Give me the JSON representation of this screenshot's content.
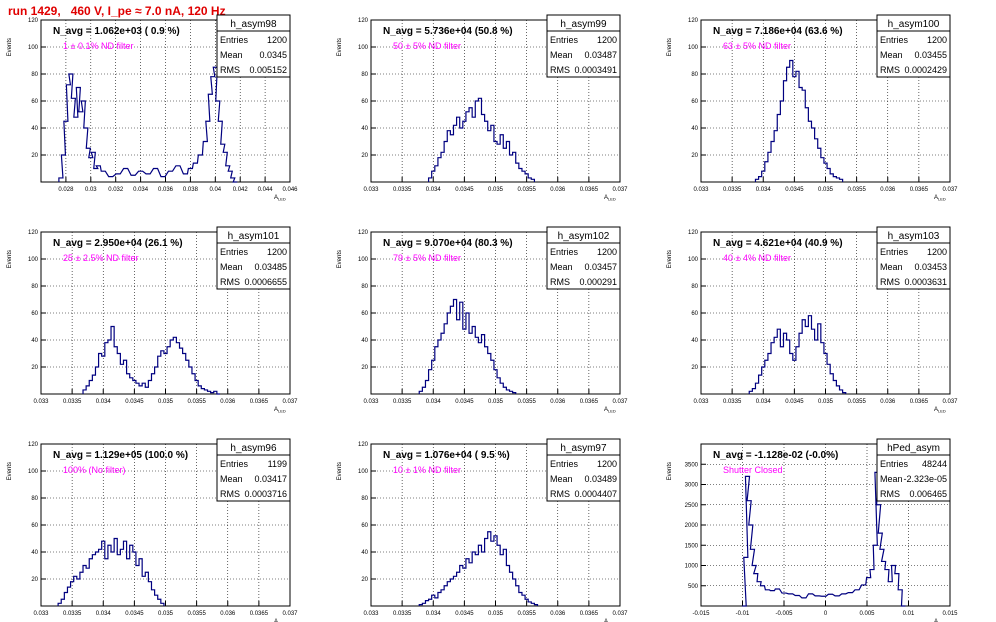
{
  "page_title": "run 1429,   460 V, I_pe ≈ 7.0 nA, 120 Hz",
  "colors": {
    "title": "#e00000",
    "histogram": "#000080",
    "annotation": "#ff00ff",
    "grid": "#000000"
  },
  "stats_labels": {
    "entries": "Entries",
    "mean": "Mean",
    "rms": "RMS"
  },
  "chart_data": [
    {
      "type": "histogram",
      "name": "h_asym98",
      "title": "N_avg = 1.062e+03 ( 0.9 %)",
      "annotation": "1 ± 0.1% ND filter",
      "stats": {
        "entries": "1200",
        "mean": "0.0345",
        "rms": "0.005152"
      },
      "xlabel": "A_LED",
      "ylabel": "Events",
      "grid": true,
      "xlim": [
        0.026,
        0.046
      ],
      "ylim": [
        0,
        120
      ],
      "xticks": [
        "0.028",
        "0.03",
        "0.032",
        "0.034",
        "0.036",
        "0.038",
        "0.04",
        "0.042",
        "0.044",
        "0.046"
      ],
      "xtick_values": [
        0.028,
        0.03,
        0.032,
        0.034,
        0.036,
        0.038,
        0.04,
        0.042,
        0.044,
        0.046
      ],
      "yticks": [
        "20",
        "40",
        "60",
        "80",
        "100",
        "120"
      ],
      "ytick_values": [
        20,
        40,
        60,
        80,
        100,
        120
      ],
      "x": [
        0.0276,
        0.0278,
        0.028,
        0.0282,
        0.0284,
        0.0286,
        0.0288,
        0.029,
        0.0292,
        0.0294,
        0.0296,
        0.0298,
        0.03,
        0.0302,
        0.0304,
        0.0306,
        0.031,
        0.0316,
        0.0322,
        0.0328,
        0.0334,
        0.034,
        0.0346,
        0.0352,
        0.0358,
        0.0364,
        0.037,
        0.0376,
        0.038,
        0.0384,
        0.0388,
        0.0392,
        0.0394,
        0.0396,
        0.0398,
        0.04,
        0.0402,
        0.0404,
        0.0406,
        0.0408,
        0.041,
        0.0412,
        0.0414,
        0.0416
      ],
      "values": [
        3,
        20,
        45,
        72,
        80,
        62,
        48,
        70,
        52,
        60,
        40,
        25,
        18,
        22,
        10,
        12,
        8,
        4,
        6,
        10,
        5,
        8,
        6,
        10,
        4,
        8,
        12,
        6,
        10,
        14,
        20,
        30,
        45,
        65,
        78,
        85,
        60,
        45,
        28,
        22,
        12,
        8,
        3,
        0
      ]
    },
    {
      "type": "histogram",
      "name": "h_asym99",
      "title": "N_avg = 5.736e+04 (50.8 %)",
      "annotation": "50 ± 5% ND filter",
      "stats": {
        "entries": "1200",
        "mean": "0.03487",
        "rms": "0.0003491"
      },
      "xlabel": "A_LED",
      "ylabel": "Events",
      "grid": true,
      "xlim": [
        0.033,
        0.037
      ],
      "ylim": [
        0,
        120
      ],
      "xticks": [
        "0.033",
        "0.0335",
        "0.034",
        "0.0345",
        "0.035",
        "0.0355",
        "0.036",
        "0.0365",
        "0.037"
      ],
      "xtick_values": [
        0.033,
        0.0335,
        0.034,
        0.0345,
        0.035,
        0.0355,
        0.036,
        0.0365,
        0.037
      ],
      "yticks": [
        "20",
        "40",
        "60",
        "80",
        "100",
        "120"
      ],
      "ytick_values": [
        20,
        40,
        60,
        80,
        100,
        120
      ],
      "x": [
        0.03395,
        0.034,
        0.03405,
        0.0341,
        0.03415,
        0.0342,
        0.03425,
        0.0343,
        0.03435,
        0.0344,
        0.03445,
        0.0345,
        0.03455,
        0.0346,
        0.03465,
        0.0347,
        0.03475,
        0.0348,
        0.03485,
        0.0349,
        0.03495,
        0.035,
        0.03505,
        0.0351,
        0.03515,
        0.0352,
        0.03525,
        0.0353,
        0.03535,
        0.0354,
        0.03545,
        0.0355,
        0.03555,
        0.0356
      ],
      "values": [
        3,
        8,
        12,
        18,
        22,
        30,
        38,
        35,
        42,
        48,
        40,
        45,
        52,
        55,
        48,
        60,
        62,
        50,
        45,
        38,
        42,
        30,
        28,
        35,
        25,
        30,
        20,
        22,
        14,
        10,
        8,
        6,
        3,
        2
      ]
    },
    {
      "type": "histogram",
      "name": "h_asym100",
      "title": "N_avg = 7.186e+04 (63.6 %)",
      "annotation": "63 ± 5% ND filter",
      "stats": {
        "entries": "1200",
        "mean": "0.03455",
        "rms": "0.0002429"
      },
      "xlabel": "A_LED",
      "ylabel": "Events",
      "grid": true,
      "xlim": [
        0.033,
        0.037
      ],
      "ylim": [
        0,
        120
      ],
      "xticks": [
        "0.033",
        "0.0335",
        "0.034",
        "0.0345",
        "0.035",
        "0.0355",
        "0.036",
        "0.0365",
        "0.037"
      ],
      "xtick_values": [
        0.033,
        0.0335,
        0.034,
        0.0345,
        0.035,
        0.0355,
        0.036,
        0.0365,
        0.037
      ],
      "yticks": [
        "20",
        "40",
        "60",
        "80",
        "100",
        "120"
      ],
      "ytick_values": [
        20,
        40,
        60,
        80,
        100,
        120
      ],
      "x": [
        0.0339,
        0.03395,
        0.034,
        0.03405,
        0.0341,
        0.03415,
        0.0342,
        0.03425,
        0.0343,
        0.03435,
        0.0344,
        0.03445,
        0.0345,
        0.03455,
        0.0346,
        0.03465,
        0.0347,
        0.03475,
        0.0348,
        0.03485,
        0.0349,
        0.03495,
        0.035,
        0.03505,
        0.0351,
        0.03515,
        0.0352,
        0.03525
      ],
      "values": [
        2,
        4,
        8,
        15,
        22,
        30,
        38,
        50,
        60,
        75,
        85,
        90,
        78,
        82,
        70,
        68,
        55,
        45,
        40,
        32,
        25,
        18,
        14,
        10,
        6,
        4,
        3,
        2
      ]
    },
    {
      "type": "histogram",
      "name": "h_asym101",
      "title": "N_avg = 2.950e+04 (26.1 %)",
      "annotation": "25 ± 2.5% ND filter",
      "stats": {
        "entries": "1200",
        "mean": "0.03485",
        "rms": "0.0006655"
      },
      "xlabel": "A_LED",
      "ylabel": "Events",
      "grid": true,
      "xlim": [
        0.033,
        0.037
      ],
      "ylim": [
        0,
        120
      ],
      "xticks": [
        "0.033",
        "0.0335",
        "0.034",
        "0.0345",
        "0.035",
        "0.0355",
        "0.036",
        "0.0365",
        "0.037"
      ],
      "xtick_values": [
        0.033,
        0.0335,
        0.034,
        0.0345,
        0.035,
        0.0355,
        0.036,
        0.0365,
        0.037
      ],
      "yticks": [
        "20",
        "40",
        "60",
        "80",
        "100",
        "120"
      ],
      "ytick_values": [
        20,
        40,
        60,
        80,
        100,
        120
      ],
      "x": [
        0.0337,
        0.03375,
        0.0338,
        0.03385,
        0.0339,
        0.03395,
        0.034,
        0.03405,
        0.0341,
        0.03415,
        0.0342,
        0.03425,
        0.0343,
        0.03435,
        0.0344,
        0.03445,
        0.0345,
        0.03455,
        0.0346,
        0.03465,
        0.0347,
        0.03475,
        0.0348,
        0.03485,
        0.0349,
        0.03495,
        0.035,
        0.03505,
        0.0351,
        0.03515,
        0.0352,
        0.03525,
        0.0353,
        0.03535,
        0.0354,
        0.03545,
        0.0355,
        0.03555,
        0.0356,
        0.03565,
        0.0357,
        0.03575,
        0.0358,
        0.03585
      ],
      "values": [
        3,
        6,
        10,
        14,
        20,
        30,
        28,
        38,
        40,
        50,
        35,
        30,
        22,
        25,
        15,
        12,
        10,
        8,
        6,
        8,
        5,
        10,
        15,
        20,
        28,
        32,
        30,
        35,
        40,
        42,
        38,
        34,
        30,
        25,
        20,
        15,
        10,
        6,
        4,
        3,
        2,
        1,
        2,
        0
      ]
    },
    {
      "type": "histogram",
      "name": "h_asym102",
      "title": "N_avg = 9.070e+04 (80.3 %)",
      "annotation": "79 ± 5% ND filter",
      "stats": {
        "entries": "1200",
        "mean": "0.03457",
        "rms": "0.000291"
      },
      "xlabel": "A_LED",
      "ylabel": "Events",
      "grid": true,
      "xlim": [
        0.033,
        0.037
      ],
      "ylim": [
        0,
        120
      ],
      "xticks": [
        "0.033",
        "0.0335",
        "0.034",
        "0.0345",
        "0.035",
        "0.0355",
        "0.036",
        "0.0365",
        "0.037"
      ],
      "xtick_values": [
        0.033,
        0.0335,
        0.034,
        0.0345,
        0.035,
        0.0355,
        0.036,
        0.0365,
        0.037
      ],
      "yticks": [
        "20",
        "40",
        "60",
        "80",
        "100",
        "120"
      ],
      "ytick_values": [
        20,
        40,
        60,
        80,
        100,
        120
      ],
      "x": [
        0.0338,
        0.03385,
        0.0339,
        0.03395,
        0.034,
        0.03405,
        0.0341,
        0.03415,
        0.0342,
        0.03425,
        0.0343,
        0.03435,
        0.0344,
        0.03445,
        0.0345,
        0.03455,
        0.0346,
        0.03465,
        0.0347,
        0.03475,
        0.0348,
        0.03485,
        0.0349,
        0.03495,
        0.035,
        0.03505,
        0.0351,
        0.03515,
        0.0352,
        0.03525,
        0.0353
      ],
      "values": [
        2,
        5,
        10,
        18,
        25,
        35,
        40,
        45,
        52,
        60,
        65,
        70,
        55,
        68,
        48,
        60,
        45,
        50,
        42,
        38,
        44,
        35,
        30,
        25,
        18,
        12,
        8,
        5,
        3,
        2,
        1
      ]
    },
    {
      "type": "histogram",
      "name": "h_asym103",
      "title": "N_avg = 4.621e+04 (40.9 %)",
      "annotation": "40 ± 4% ND filter",
      "stats": {
        "entries": "1200",
        "mean": "0.03453",
        "rms": "0.0003631"
      },
      "xlabel": "A_LED",
      "ylabel": "Events",
      "grid": true,
      "xlim": [
        0.033,
        0.037
      ],
      "ylim": [
        0,
        120
      ],
      "xticks": [
        "0.033",
        "0.0335",
        "0.034",
        "0.0345",
        "0.035",
        "0.0355",
        "0.036",
        "0.0365",
        "0.037"
      ],
      "xtick_values": [
        0.033,
        0.0335,
        0.034,
        0.0345,
        0.035,
        0.0355,
        0.036,
        0.0365,
        0.037
      ],
      "yticks": [
        "20",
        "40",
        "60",
        "80",
        "100",
        "120"
      ],
      "ytick_values": [
        20,
        40,
        60,
        80,
        100,
        120
      ],
      "x": [
        0.0338,
        0.03385,
        0.0339,
        0.03395,
        0.034,
        0.03405,
        0.0341,
        0.03415,
        0.0342,
        0.03425,
        0.0343,
        0.03435,
        0.0344,
        0.03445,
        0.0345,
        0.03455,
        0.0346,
        0.03465,
        0.0347,
        0.03475,
        0.0348,
        0.03485,
        0.0349,
        0.03495,
        0.035,
        0.03505,
        0.0351,
        0.03515,
        0.0352,
        0.03525,
        0.0353
      ],
      "values": [
        2,
        4,
        8,
        14,
        20,
        25,
        30,
        38,
        42,
        48,
        35,
        45,
        40,
        30,
        25,
        35,
        45,
        55,
        50,
        58,
        48,
        40,
        52,
        38,
        30,
        22,
        15,
        10,
        6,
        3,
        1
      ]
    },
    {
      "type": "histogram",
      "name": "h_asym96",
      "title": "N_avg = 1.129e+05 (100.0 %)",
      "annotation": "100% (No filter)",
      "stats": {
        "entries": "1199",
        "mean": "0.03417",
        "rms": "0.0003716"
      },
      "xlabel": "A_LED",
      "ylabel": "Events",
      "grid": true,
      "xlim": [
        0.033,
        0.037
      ],
      "ylim": [
        0,
        120
      ],
      "xticks": [
        "0.033",
        "0.0335",
        "0.034",
        "0.0345",
        "0.035",
        "0.0355",
        "0.036",
        "0.0365",
        "0.037"
      ],
      "xtick_values": [
        0.033,
        0.0335,
        0.034,
        0.0345,
        0.035,
        0.0355,
        0.036,
        0.0365,
        0.037
      ],
      "yticks": [
        "20",
        "40",
        "60",
        "80",
        "100",
        "120"
      ],
      "ytick_values": [
        20,
        40,
        60,
        80,
        100,
        120
      ],
      "x": [
        0.0333,
        0.03335,
        0.0334,
        0.03345,
        0.0335,
        0.03355,
        0.0336,
        0.03365,
        0.0337,
        0.03375,
        0.0338,
        0.03385,
        0.0339,
        0.03395,
        0.034,
        0.03405,
        0.0341,
        0.03415,
        0.0342,
        0.03425,
        0.0343,
        0.03435,
        0.0344,
        0.03445,
        0.0345,
        0.03455,
        0.0346,
        0.03465,
        0.0347,
        0.03475,
        0.0348,
        0.03485,
        0.0349,
        0.03495
      ],
      "values": [
        2,
        5,
        10,
        14,
        18,
        22,
        20,
        25,
        30,
        28,
        35,
        38,
        40,
        42,
        48,
        35,
        45,
        40,
        50,
        38,
        42,
        48,
        35,
        45,
        40,
        30,
        35,
        22,
        25,
        18,
        12,
        8,
        5,
        2
      ]
    },
    {
      "type": "histogram",
      "name": "h_asym97",
      "title": "N_avg = 1.076e+04 ( 9.5 %)",
      "annotation": "10 ± 1% ND filter",
      "stats": {
        "entries": "1200",
        "mean": "0.03489",
        "rms": "0.0004407"
      },
      "xlabel": "A_LED",
      "ylabel": "Events",
      "grid": true,
      "xlim": [
        0.033,
        0.037
      ],
      "ylim": [
        0,
        120
      ],
      "xticks": [
        "0.033",
        "0.0335",
        "0.034",
        "0.0345",
        "0.035",
        "0.0355",
        "0.036",
        "0.0365",
        "0.037"
      ],
      "xtick_values": [
        0.033,
        0.0335,
        0.034,
        0.0345,
        0.035,
        0.0355,
        0.036,
        0.0365,
        0.037
      ],
      "yticks": [
        "20",
        "40",
        "60",
        "80",
        "100",
        "120"
      ],
      "ytick_values": [
        20,
        40,
        60,
        80,
        100,
        120
      ],
      "x": [
        0.0338,
        0.03385,
        0.0339,
        0.03395,
        0.034,
        0.03405,
        0.0341,
        0.03415,
        0.0342,
        0.03425,
        0.0343,
        0.03435,
        0.0344,
        0.03445,
        0.0345,
        0.03455,
        0.0346,
        0.03465,
        0.0347,
        0.03475,
        0.0348,
        0.03485,
        0.0349,
        0.03495,
        0.035,
        0.03505,
        0.0351,
        0.03515,
        0.0352,
        0.03525,
        0.0353,
        0.03535,
        0.0354,
        0.03545,
        0.0355,
        0.03555,
        0.0356,
        0.03565
      ],
      "values": [
        1,
        2,
        4,
        5,
        8,
        6,
        10,
        12,
        15,
        18,
        20,
        22,
        25,
        30,
        28,
        35,
        32,
        40,
        38,
        45,
        40,
        50,
        55,
        48,
        52,
        45,
        38,
        42,
        30,
        25,
        20,
        15,
        10,
        8,
        5,
        3,
        2,
        1
      ]
    },
    {
      "type": "histogram",
      "name": "hPed_asym",
      "title": "N_avg = -1.128e-02 (-0.0%)",
      "annotation": "Shutter Closed",
      "stats": {
        "entries": "48244",
        "mean": "-2.323e-05",
        "rms": "0.006465"
      },
      "xlabel": "A_LED",
      "ylabel": "Events",
      "grid": true,
      "xlim": [
        -0.015,
        0.015
      ],
      "ylim": [
        0,
        4000
      ],
      "xticks": [
        "-0.015",
        "-0.01",
        "-0.005",
        "0",
        "0.005",
        "0.01",
        "0.015"
      ],
      "xtick_values": [
        -0.015,
        -0.01,
        -0.005,
        0,
        0.005,
        0.01,
        0.015
      ],
      "yticks": [
        "500",
        "1000",
        "1500",
        "2000",
        "2500",
        "3000",
        "3500"
      ],
      "ytick_values": [
        500,
        1000,
        1500,
        2000,
        2500,
        3000,
        3500
      ],
      "x": [
        -0.0098,
        -0.0096,
        -0.0094,
        -0.0092,
        -0.009,
        -0.0088,
        -0.0086,
        -0.0084,
        -0.008,
        -0.0076,
        -0.007,
        -0.0064,
        -0.0058,
        -0.005,
        -0.0042,
        -0.0034,
        -0.0026,
        -0.0018,
        -0.001,
        -0.0002,
        0.0006,
        0.0014,
        0.0022,
        0.003,
        0.0038,
        0.0046,
        0.0052,
        0.0056,
        0.006,
        0.0062,
        0.0064,
        0.0066,
        0.0068,
        0.007,
        0.0074,
        0.0078,
        0.0082,
        0.0086,
        0.009,
        0.0094
      ],
      "values": [
        0,
        1200,
        3200,
        2600,
        2000,
        1400,
        1000,
        800,
        600,
        500,
        400,
        380,
        420,
        320,
        300,
        260,
        200,
        300,
        250,
        240,
        290,
        250,
        300,
        330,
        400,
        520,
        700,
        900,
        1500,
        3300,
        2500,
        1800,
        1400,
        1100,
        900,
        600,
        1000,
        800,
        400,
        0
      ]
    }
  ]
}
